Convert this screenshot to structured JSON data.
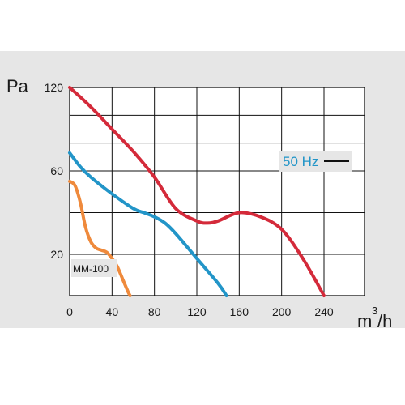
{
  "chart_data": {
    "type": "line",
    "ylabel": "Pa",
    "xlabel_base": "m",
    "xlabel_sup": "3",
    "xlabel_tail": "/h",
    "xlim": [
      0,
      270
    ],
    "ylim": [
      0,
      120
    ],
    "x_scale_note": "piecewise: 0-80 step 40, 80-240 step 40",
    "x_ticks": [
      {
        "value": 0,
        "label": "0"
      },
      {
        "value": 40,
        "label": "40"
      },
      {
        "value": 80,
        "label": "80"
      },
      {
        "value": 120,
        "label": "120"
      },
      {
        "value": 160,
        "label": "160"
      },
      {
        "value": 200,
        "label": "200"
      },
      {
        "value": 240,
        "label": "240"
      }
    ],
    "y_ticks": [
      {
        "value": 20,
        "label": "20"
      },
      {
        "value": 60,
        "label": "60"
      },
      {
        "value": 120,
        "label": "120"
      }
    ],
    "grid": true,
    "annotations": {
      "model": "MM-100",
      "frequency": "50 Hz"
    },
    "series": [
      {
        "color": "#d42a3a",
        "points": [
          [
            0,
            120
          ],
          [
            20,
            106
          ],
          [
            40,
            90
          ],
          [
            60,
            74
          ],
          [
            80,
            57
          ],
          [
            100,
            42
          ],
          [
            120,
            36
          ],
          [
            130,
            35
          ],
          [
            140,
            36
          ],
          [
            160,
            40
          ],
          [
            180,
            38
          ],
          [
            200,
            32
          ],
          [
            220,
            18
          ],
          [
            240,
            0
          ]
        ]
      },
      {
        "color": "#2295c8",
        "points": [
          [
            0,
            73
          ],
          [
            10,
            63
          ],
          [
            20,
            57
          ],
          [
            40,
            49
          ],
          [
            60,
            42
          ],
          [
            70,
            40
          ],
          [
            80,
            38
          ],
          [
            90,
            35
          ],
          [
            100,
            30
          ],
          [
            120,
            18
          ],
          [
            140,
            6
          ],
          [
            148,
            0
          ]
        ]
      },
      {
        "color": "#ef8a3c",
        "points": [
          [
            0,
            55
          ],
          [
            5,
            53
          ],
          [
            10,
            45
          ],
          [
            15,
            33
          ],
          [
            20,
            26
          ],
          [
            25,
            23
          ],
          [
            30,
            22
          ],
          [
            35,
            21
          ],
          [
            40,
            18
          ],
          [
            45,
            14
          ],
          [
            50,
            8
          ],
          [
            55,
            2
          ],
          [
            57,
            0
          ]
        ]
      }
    ]
  }
}
